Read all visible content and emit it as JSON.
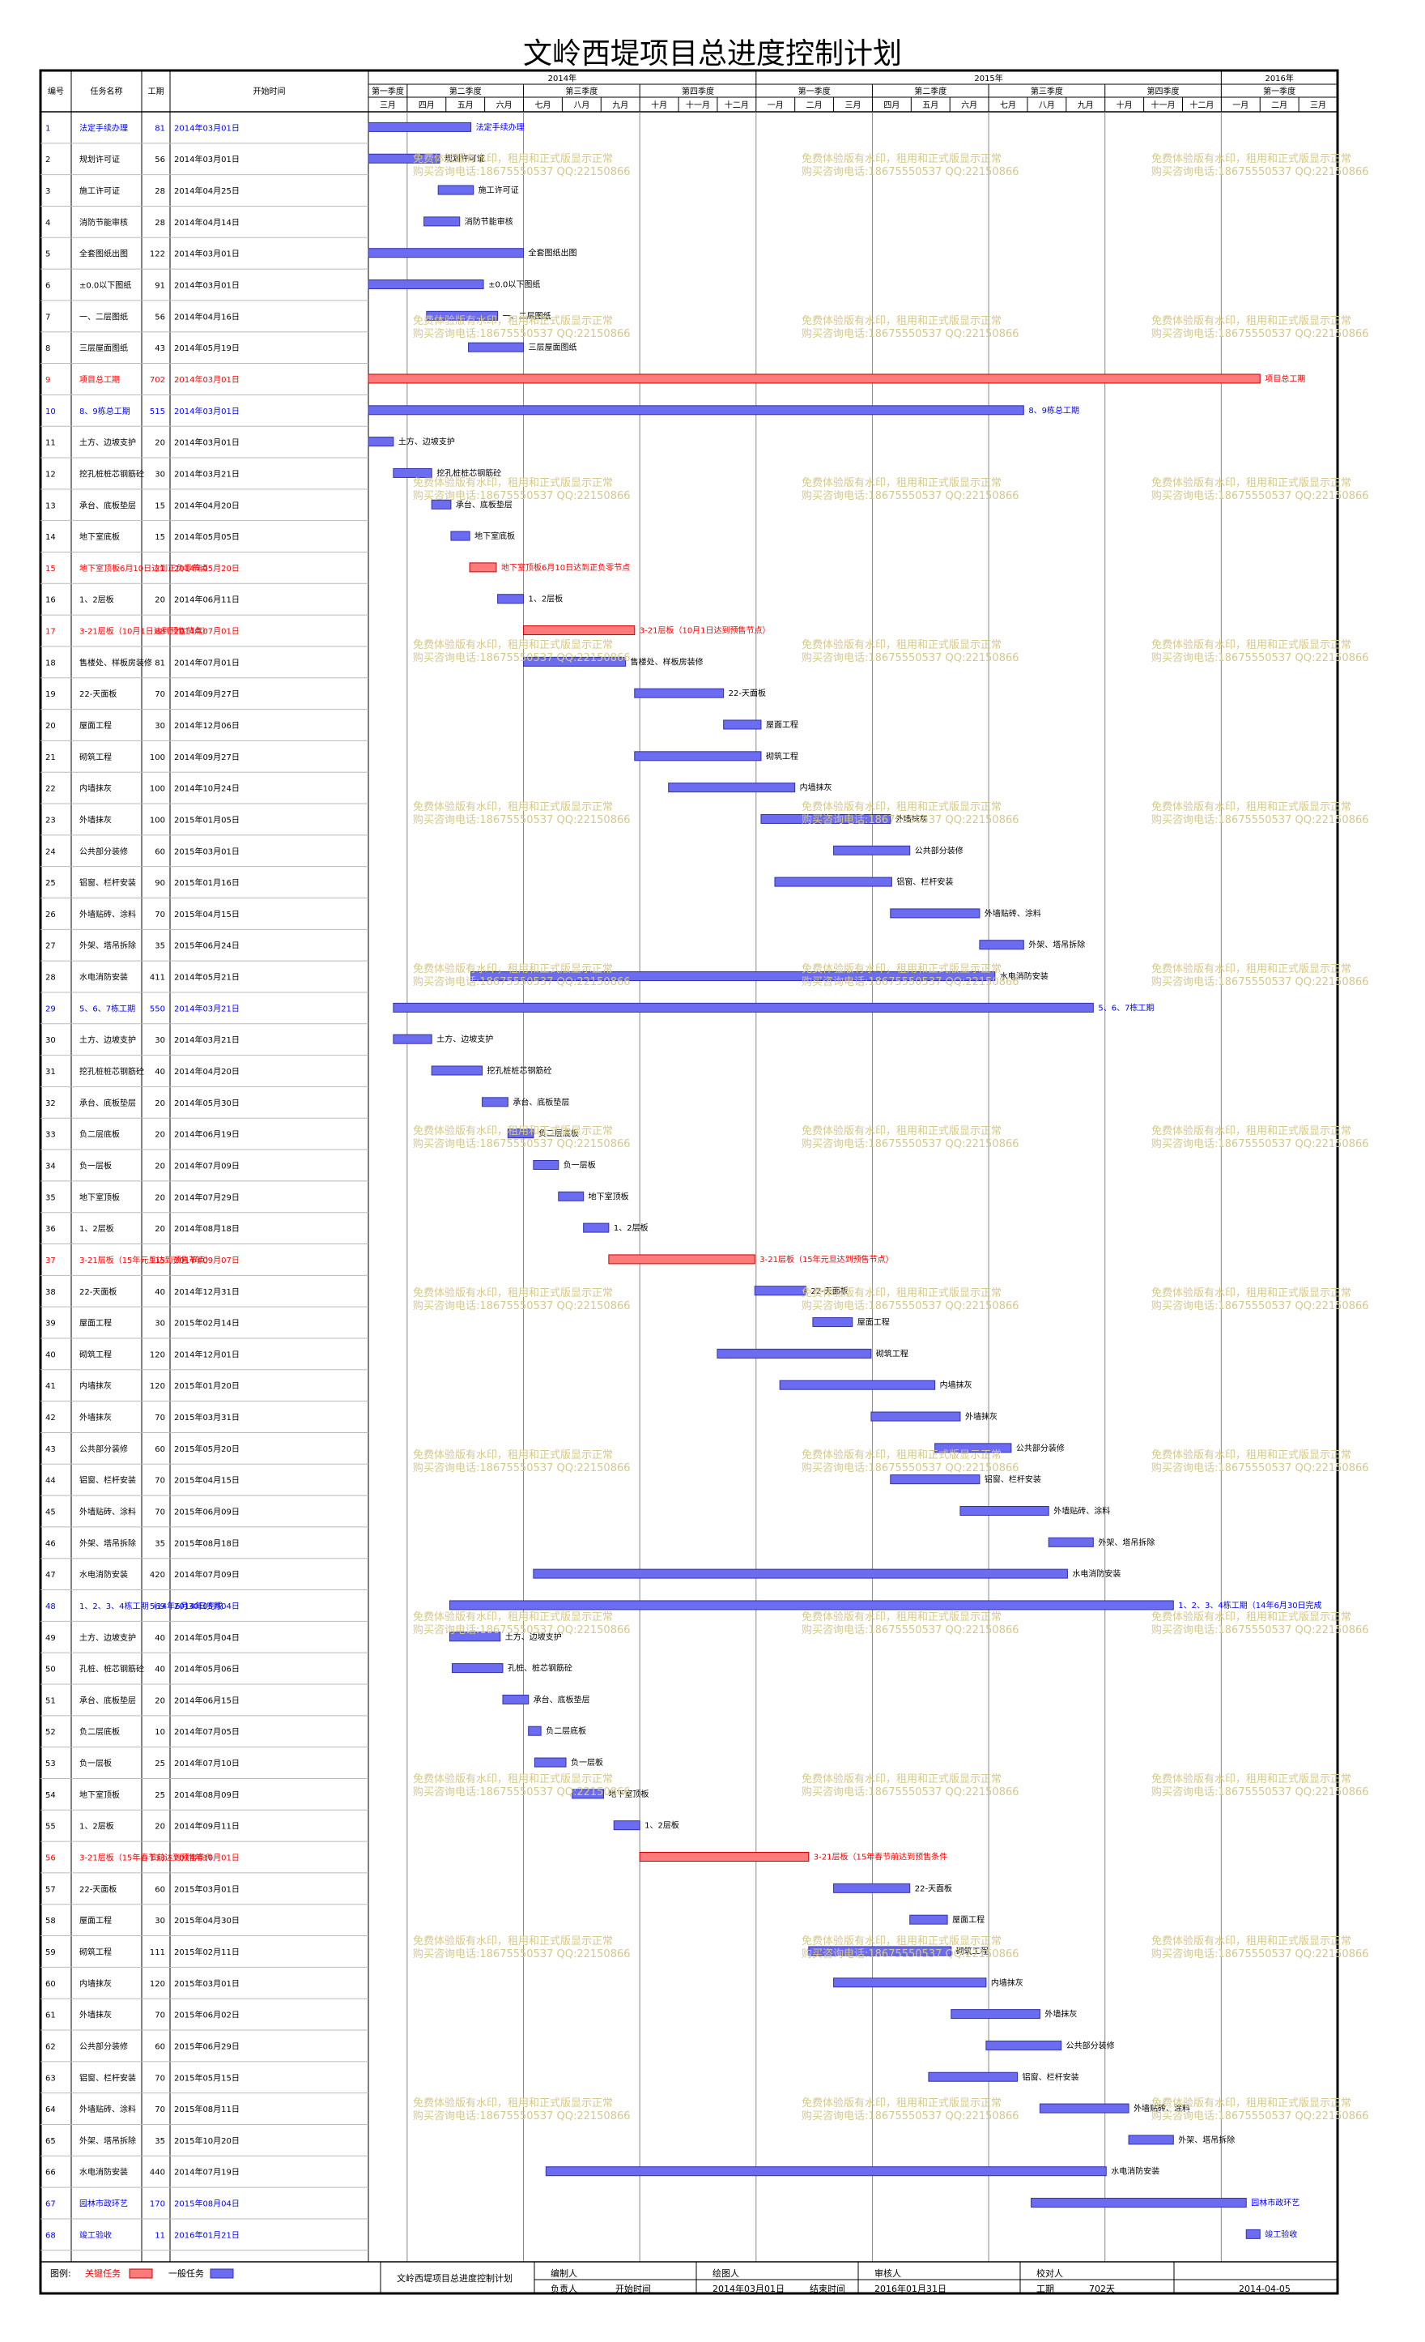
{
  "title": "文岭西堤项目总进度控制计划",
  "headers": {
    "id": "编号",
    "name": "任务名称",
    "duration": "工期",
    "start": "开始时间"
  },
  "years": [
    {
      "label": "2014年"
    },
    {
      "label": "2015年"
    },
    {
      "label": "2016年"
    }
  ],
  "quarters": [
    "第一季度",
    "第二季度",
    "第三季度",
    "第四季度",
    "第一季度",
    "第二季度",
    "第三季度",
    "第四季度",
    "第一季度"
  ],
  "months": [
    "三月",
    "四月",
    "五月",
    "六月",
    "七月",
    "八月",
    "九月",
    "十月",
    "十一月",
    "十二月",
    "一月",
    "二月",
    "三月",
    "四月",
    "五月",
    "六月",
    "七月",
    "八月",
    "九月",
    "十月",
    "十一月",
    "十二月",
    "一月",
    "二月",
    "三月"
  ],
  "watermark": {
    "line1": "免费体验版有水印，租用和正式版显示正常",
    "line2": "购买咨询电话:18675550537 QQ:22150866"
  },
  "colors": {
    "critical": "#ff7a7a",
    "normal": "#6c6cf0",
    "blue_text": "#0000ff",
    "red_text": "#ff0000",
    "link": "#0000cc"
  },
  "legend": {
    "label": "图例:",
    "critical": "关键任务",
    "normal": "一般任务"
  },
  "footer": {
    "plan_name": "文岭西堤项目总进度控制计划",
    "compiler": "编制人",
    "drawer": "绘图人",
    "reviewer": "审核人",
    "checker": "校对人",
    "owner": "负责人",
    "start_label": "开始时间",
    "start_value": "2014年03月01日",
    "end_label": "结束时间",
    "end_value": "2016年01月31日",
    "duration_label": "工期",
    "duration_value": "702天",
    "date": "2014-04-05"
  },
  "chart_data": {
    "type": "gantt",
    "x_axis": {
      "start": "2014-03-01",
      "end": "2016-03-31",
      "unit": "month"
    },
    "tasks": [
      {
        "id": "1",
        "name": "法定手续办理",
        "duration": 81,
        "start": "2014年03月01日",
        "color": "blue"
      },
      {
        "id": "2",
        "name": "规划许可证",
        "duration": 56,
        "start": "2014年03月01日",
        "color": "black"
      },
      {
        "id": "3",
        "name": "施工许可证",
        "duration": 28,
        "start": "2014年04月25日",
        "color": "black"
      },
      {
        "id": "4",
        "name": "消防节能审核",
        "duration": 28,
        "start": "2014年04月14日",
        "color": "black"
      },
      {
        "id": "5",
        "name": "全套图纸出图",
        "duration": 122,
        "start": "2014年03月01日",
        "color": "black"
      },
      {
        "id": "6",
        "name": "±0.0以下图纸",
        "duration": 91,
        "start": "2014年03月01日",
        "color": "black"
      },
      {
        "id": "7",
        "name": "一、二层图纸",
        "duration": 56,
        "start": "2014年04月16日",
        "color": "black"
      },
      {
        "id": "8",
        "name": "三层屋面图纸",
        "duration": 43,
        "start": "2014年05月19日",
        "color": "black"
      },
      {
        "id": "9",
        "name": "项目总工期",
        "duration": 702,
        "start": "2014年03月01日",
        "color": "red"
      },
      {
        "id": "10",
        "name": "8、9栋总工期",
        "duration": 515,
        "start": "2014年03月01日",
        "color": "blue"
      },
      {
        "id": "11",
        "name": "土方、边坡支护",
        "duration": 20,
        "start": "2014年03月01日",
        "color": "black"
      },
      {
        "id": "12",
        "name": "挖孔桩桩芯钢筋砼",
        "duration": 30,
        "start": "2014年03月21日",
        "color": "black"
      },
      {
        "id": "13",
        "name": "承台、底板垫层",
        "duration": 15,
        "start": "2014年04月20日",
        "color": "black"
      },
      {
        "id": "14",
        "name": "地下室底板",
        "duration": 15,
        "start": "2014年05月05日",
        "color": "black"
      },
      {
        "id": "15",
        "name": "地下室顶板6月10日达到正负零节点",
        "duration": 21,
        "start": "2014年05月20日",
        "color": "red"
      },
      {
        "id": "16",
        "name": "1、2层板",
        "duration": 20,
        "start": "2014年06月11日",
        "color": "black"
      },
      {
        "id": "17",
        "name": "3-21层板（10月1日达到预售节点）",
        "duration": 88,
        "start": "2014年07月01日",
        "color": "red"
      },
      {
        "id": "18",
        "name": "售楼处、样板房装修",
        "duration": 81,
        "start": "2014年07月01日",
        "color": "black"
      },
      {
        "id": "19",
        "name": "22-天面板",
        "duration": 70,
        "start": "2014年09月27日",
        "color": "black"
      },
      {
        "id": "20",
        "name": "屋面工程",
        "duration": 30,
        "start": "2014年12月06日",
        "color": "black"
      },
      {
        "id": "21",
        "name": "砌筑工程",
        "duration": 100,
        "start": "2014年09月27日",
        "color": "black"
      },
      {
        "id": "22",
        "name": "内墙抹灰",
        "duration": 100,
        "start": "2014年10月24日",
        "color": "black"
      },
      {
        "id": "23",
        "name": "外墙抹灰",
        "duration": 100,
        "start": "2015年01月05日",
        "color": "black"
      },
      {
        "id": "24",
        "name": "公共部分装修",
        "duration": 60,
        "start": "2015年03月01日",
        "color": "black"
      },
      {
        "id": "25",
        "name": "铝窗、栏杆安装",
        "duration": 90,
        "start": "2015年01月16日",
        "color": "black"
      },
      {
        "id": "26",
        "name": "外墙贴砖、涂料",
        "duration": 70,
        "start": "2015年04月15日",
        "color": "black"
      },
      {
        "id": "27",
        "name": "外架、塔吊拆除",
        "duration": 35,
        "start": "2015年06月24日",
        "color": "black"
      },
      {
        "id": "28",
        "name": "水电消防安装",
        "duration": 411,
        "start": "2014年05月21日",
        "color": "black"
      },
      {
        "id": "29",
        "name": "5、6、7栋工期",
        "duration": 550,
        "start": "2014年03月21日",
        "color": "blue"
      },
      {
        "id": "30",
        "name": "土方、边坡支护",
        "duration": 30,
        "start": "2014年03月21日",
        "color": "black"
      },
      {
        "id": "31",
        "name": "挖孔桩桩芯钢筋砼",
        "duration": 40,
        "start": "2014年04月20日",
        "color": "black"
      },
      {
        "id": "32",
        "name": "承台、底板垫层",
        "duration": 20,
        "start": "2014年05月30日",
        "color": "black"
      },
      {
        "id": "33",
        "name": "负二层底板",
        "duration": 20,
        "start": "2014年06月19日",
        "color": "black"
      },
      {
        "id": "34",
        "name": "负一层板",
        "duration": 20,
        "start": "2014年07月09日",
        "color": "black"
      },
      {
        "id": "35",
        "name": "地下室顶板",
        "duration": 20,
        "start": "2014年07月29日",
        "color": "black"
      },
      {
        "id": "36",
        "name": "1、2层板",
        "duration": 20,
        "start": "2014年08月18日",
        "color": "black"
      },
      {
        "id": "37",
        "name": "3-21层板（15年元旦达到预售节点）",
        "duration": 115,
        "start": "2014年09月07日",
        "color": "red"
      },
      {
        "id": "38",
        "name": "22-天面板",
        "duration": 40,
        "start": "2014年12月31日",
        "color": "black"
      },
      {
        "id": "39",
        "name": "屋面工程",
        "duration": 30,
        "start": "2015年02月14日",
        "color": "black"
      },
      {
        "id": "40",
        "name": "砌筑工程",
        "duration": 120,
        "start": "2014年12月01日",
        "color": "black"
      },
      {
        "id": "41",
        "name": "内墙抹灰",
        "duration": 120,
        "start": "2015年01月20日",
        "color": "black"
      },
      {
        "id": "42",
        "name": "外墙抹灰",
        "duration": 70,
        "start": "2015年03月31日",
        "color": "black"
      },
      {
        "id": "43",
        "name": "公共部分装修",
        "duration": 60,
        "start": "2015年05月20日",
        "color": "black"
      },
      {
        "id": "44",
        "name": "铝窗、栏杆安装",
        "duration": 70,
        "start": "2015年04月15日",
        "color": "black"
      },
      {
        "id": "45",
        "name": "外墙贴砖、涂料",
        "duration": 70,
        "start": "2015年06月09日",
        "color": "black"
      },
      {
        "id": "46",
        "name": "外架、塔吊拆除",
        "duration": 35,
        "start": "2015年08月18日",
        "color": "black"
      },
      {
        "id": "47",
        "name": "水电消防安装",
        "duration": 420,
        "start": "2014年07月09日",
        "color": "black"
      },
      {
        "id": "48",
        "name": "1、2、3、4栋工期（14年6月30日完成",
        "duration": 569,
        "start": "2014年05月04日",
        "color": "blue"
      },
      {
        "id": "49",
        "name": "土方、边坡支护",
        "duration": 40,
        "start": "2014年05月04日",
        "color": "black"
      },
      {
        "id": "50",
        "name": "孔桩、桩芯钢筋砼",
        "duration": 40,
        "start": "2014年05月06日",
        "color": "black"
      },
      {
        "id": "51",
        "name": "承台、底板垫层",
        "duration": 20,
        "start": "2014年06月15日",
        "color": "black"
      },
      {
        "id": "52",
        "name": "负二层底板",
        "duration": 10,
        "start": "2014年07月05日",
        "color": "black"
      },
      {
        "id": "53",
        "name": "负一层板",
        "duration": 25,
        "start": "2014年07月10日",
        "color": "black"
      },
      {
        "id": "54",
        "name": "地下室顶板",
        "duration": 25,
        "start": "2014年08月09日",
        "color": "black"
      },
      {
        "id": "55",
        "name": "1、2层板",
        "duration": 20,
        "start": "2014年09月11日",
        "color": "black"
      },
      {
        "id": "56",
        "name": "3-21层板（15年春节前达到预售条件",
        "duration": 133,
        "start": "2014年10月01日",
        "color": "red"
      },
      {
        "id": "57",
        "name": "22-天面板",
        "duration": 60,
        "start": "2015年03月01日",
        "color": "black"
      },
      {
        "id": "58",
        "name": "屋面工程",
        "duration": 30,
        "start": "2015年04月30日",
        "color": "black"
      },
      {
        "id": "59",
        "name": "砌筑工程",
        "duration": 111,
        "start": "2015年02月11日",
        "color": "black"
      },
      {
        "id": "60",
        "name": "内墙抹灰",
        "duration": 120,
        "start": "2015年03月01日",
        "color": "black"
      },
      {
        "id": "61",
        "name": "外墙抹灰",
        "duration": 70,
        "start": "2015年06月02日",
        "color": "black"
      },
      {
        "id": "62",
        "name": "公共部分装修",
        "duration": 60,
        "start": "2015年06月29日",
        "color": "black"
      },
      {
        "id": "63",
        "name": "铝窗、栏杆安装",
        "duration": 70,
        "start": "2015年05月15日",
        "color": "black"
      },
      {
        "id": "64",
        "name": "外墙贴砖、涂料",
        "duration": 70,
        "start": "2015年08月11日",
        "color": "black"
      },
      {
        "id": "65",
        "name": "外架、塔吊拆除",
        "duration": 35,
        "start": "2015年10月20日",
        "color": "black"
      },
      {
        "id": "66",
        "name": "水电消防安装",
        "duration": 440,
        "start": "2014年07月19日",
        "color": "black"
      },
      {
        "id": "67",
        "name": "园林市政环艺",
        "duration": 170,
        "start": "2015年08月04日",
        "color": "blue"
      },
      {
        "id": "68",
        "name": "竣工验收",
        "duration": 11,
        "start": "2016年01月21日",
        "color": "blue"
      }
    ],
    "bar_labels": {
      "1": "法定手续办理",
      "2": "规划许可证",
      "3": "施工许可证",
      "4": "消防节能审核",
      "5": "全套图纸出图",
      "6": "±0.0以下图纸",
      "7": "一、二层图纸",
      "8": "三层屋面图纸",
      "9": "项目总工期",
      "10": "8、9栋总工期",
      "11": "土方、边坡支护",
      "12": "挖孔桩桩芯钢筋砼",
      "13": "承台、底板垫层",
      "14": "地下室底板",
      "15": "地下室顶板6月10日达到正负零节点",
      "16": "1、2层板",
      "17": "3-21层板（10月1日达到预售节点）",
      "18": "售楼处、样板房装修",
      "19": "22-天面板",
      "20": "屋面工程",
      "21": "砌筑工程",
      "22": "内墙抹灰",
      "23": "外墙抹灰",
      "24": "公共部分装修",
      "25": "铝窗、栏杆安装",
      "26": "外墙贴砖、涂料",
      "27": "外架、塔吊拆除",
      "28": "水电消防安装",
      "29": "5、6、7栋工期",
      "30": "土方、边坡支护",
      "31": "挖孔桩桩芯钢筋砼",
      "32": "承台、底板垫层",
      "33": "负二层底板",
      "34": "负一层板",
      "35": "地下室顶板",
      "36": "1、2层板",
      "37": "3-21层板（15年元旦达到预售节点）",
      "38": "22-天面板",
      "39": "屋面工程",
      "40": "砌筑工程",
      "41": "内墙抹灰",
      "42": "外墙抹灰",
      "43": "公共部分装修",
      "44": "铝窗、栏杆安装",
      "45": "外墙贴砖、涂料",
      "46": "外架、塔吊拆除",
      "47": "水电消防安装",
      "48": "1、2、3、4栋工期（14年6月30日完成",
      "49": "土方、边坡支护",
      "50": "孔桩、桩芯钢筋砼",
      "51": "承台、底板垫层",
      "52": "负二层底板",
      "53": "负一层板",
      "54": "地下室顶板",
      "55": "1、2层板",
      "56": "3-21层板（15年春节前达到预售条件",
      "57": "22-天面板",
      "58": "屋面工程",
      "59": "砌筑工程",
      "60": "内墙抹灰",
      "61": "外墙抹灰",
      "62": "公共部分装修",
      "63": "铝窗、栏杆安装",
      "64": "外墙贴砖、涂料",
      "65": "外架、塔吊拆除",
      "66": "水电消防安装",
      "67": "园林市政环艺",
      "68": "竣工验收"
    }
  }
}
